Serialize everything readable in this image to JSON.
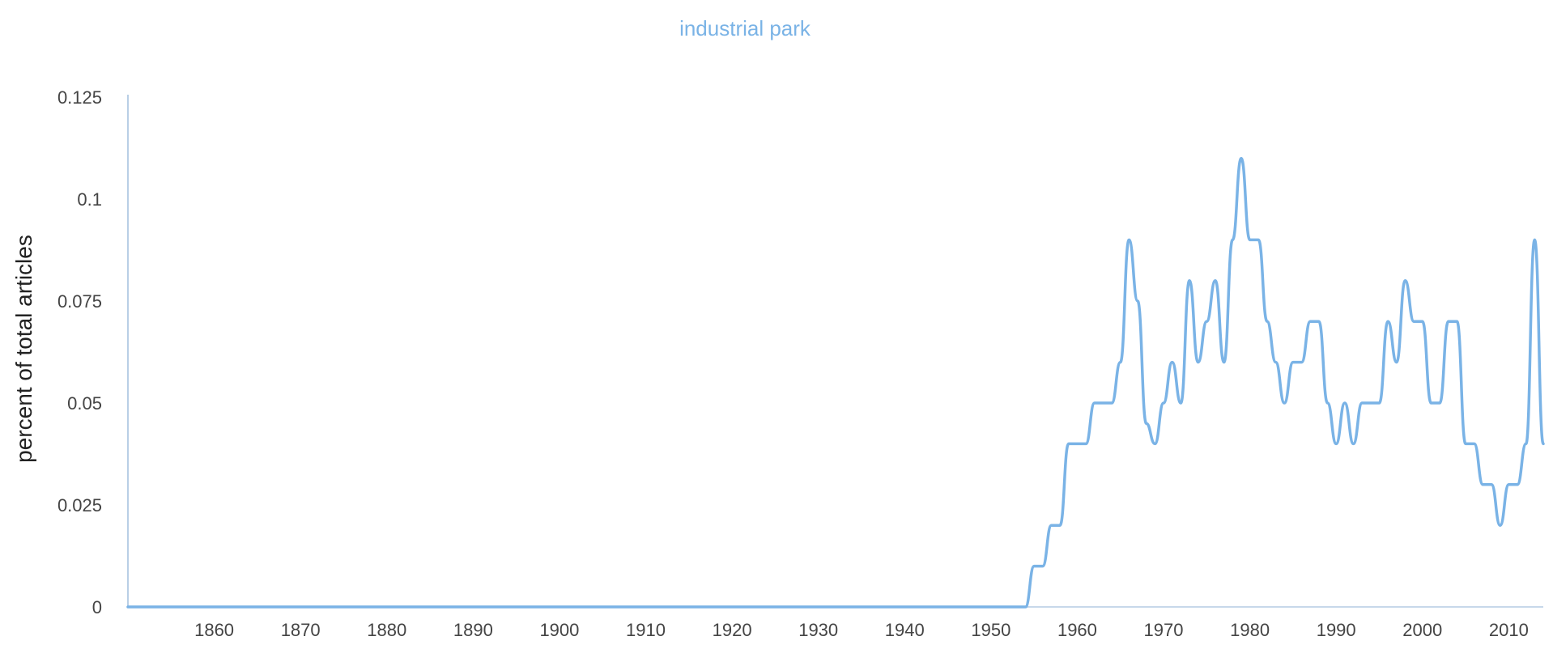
{
  "chart_data": {
    "type": "line",
    "title": "industrial park",
    "xlabel": "",
    "ylabel": "percent of total articles",
    "xlim": [
      1850,
      2014
    ],
    "ylim": [
      0,
      0.125
    ],
    "x_ticks": [
      1860,
      1870,
      1880,
      1890,
      1900,
      1910,
      1920,
      1930,
      1940,
      1950,
      1960,
      1970,
      1980,
      1990,
      2000,
      2010
    ],
    "y_ticks": [
      0,
      0.025,
      0.05,
      0.075,
      0.1,
      0.125
    ],
    "x_tick_labels": [
      "1860",
      "1870",
      "1880",
      "1890",
      "1900",
      "1910",
      "1920",
      "1930",
      "1940",
      "1950",
      "1960",
      "1970",
      "1980",
      "1990",
      "2000",
      "2010"
    ],
    "y_tick_labels": [
      "0",
      "0.025",
      "0.05",
      "0.075",
      "0.1",
      "0.125"
    ],
    "grid": false,
    "legend": "none",
    "colors": {
      "series": "#7ab3e6",
      "axis": "#b9cfe6",
      "text": "#444444"
    },
    "series": [
      {
        "x": [
          1850,
          1954,
          1955,
          1956,
          1957,
          1958,
          1959,
          1960,
          1961,
          1962,
          1963,
          1964,
          1965,
          1966,
          1967,
          1968,
          1969,
          1970,
          1971,
          1972,
          1973,
          1974,
          1975,
          1976,
          1977,
          1978,
          1979,
          1980,
          1981,
          1982,
          1983,
          1984,
          1985,
          1986,
          1987,
          1988,
          1989,
          1990,
          1991,
          1992,
          1993,
          1994,
          1995,
          1996,
          1997,
          1998,
          1999,
          2000,
          2001,
          2002,
          2003,
          2004,
          2005,
          2006,
          2007,
          2008,
          2009,
          2010,
          2011,
          2012,
          2013,
          2014
        ],
        "y": [
          0,
          0,
          0.01,
          0.01,
          0.02,
          0.02,
          0.04,
          0.04,
          0.04,
          0.05,
          0.05,
          0.05,
          0.06,
          0.09,
          0.075,
          0.045,
          0.04,
          0.05,
          0.06,
          0.05,
          0.08,
          0.06,
          0.07,
          0.08,
          0.06,
          0.09,
          0.11,
          0.09,
          0.09,
          0.07,
          0.06,
          0.05,
          0.06,
          0.06,
          0.07,
          0.07,
          0.05,
          0.04,
          0.05,
          0.04,
          0.05,
          0.05,
          0.05,
          0.07,
          0.06,
          0.08,
          0.07,
          0.07,
          0.05,
          0.05,
          0.07,
          0.07,
          0.04,
          0.04,
          0.03,
          0.03,
          0.02,
          0.03,
          0.03,
          0.04,
          0.09,
          0.04
        ]
      }
    ]
  }
}
